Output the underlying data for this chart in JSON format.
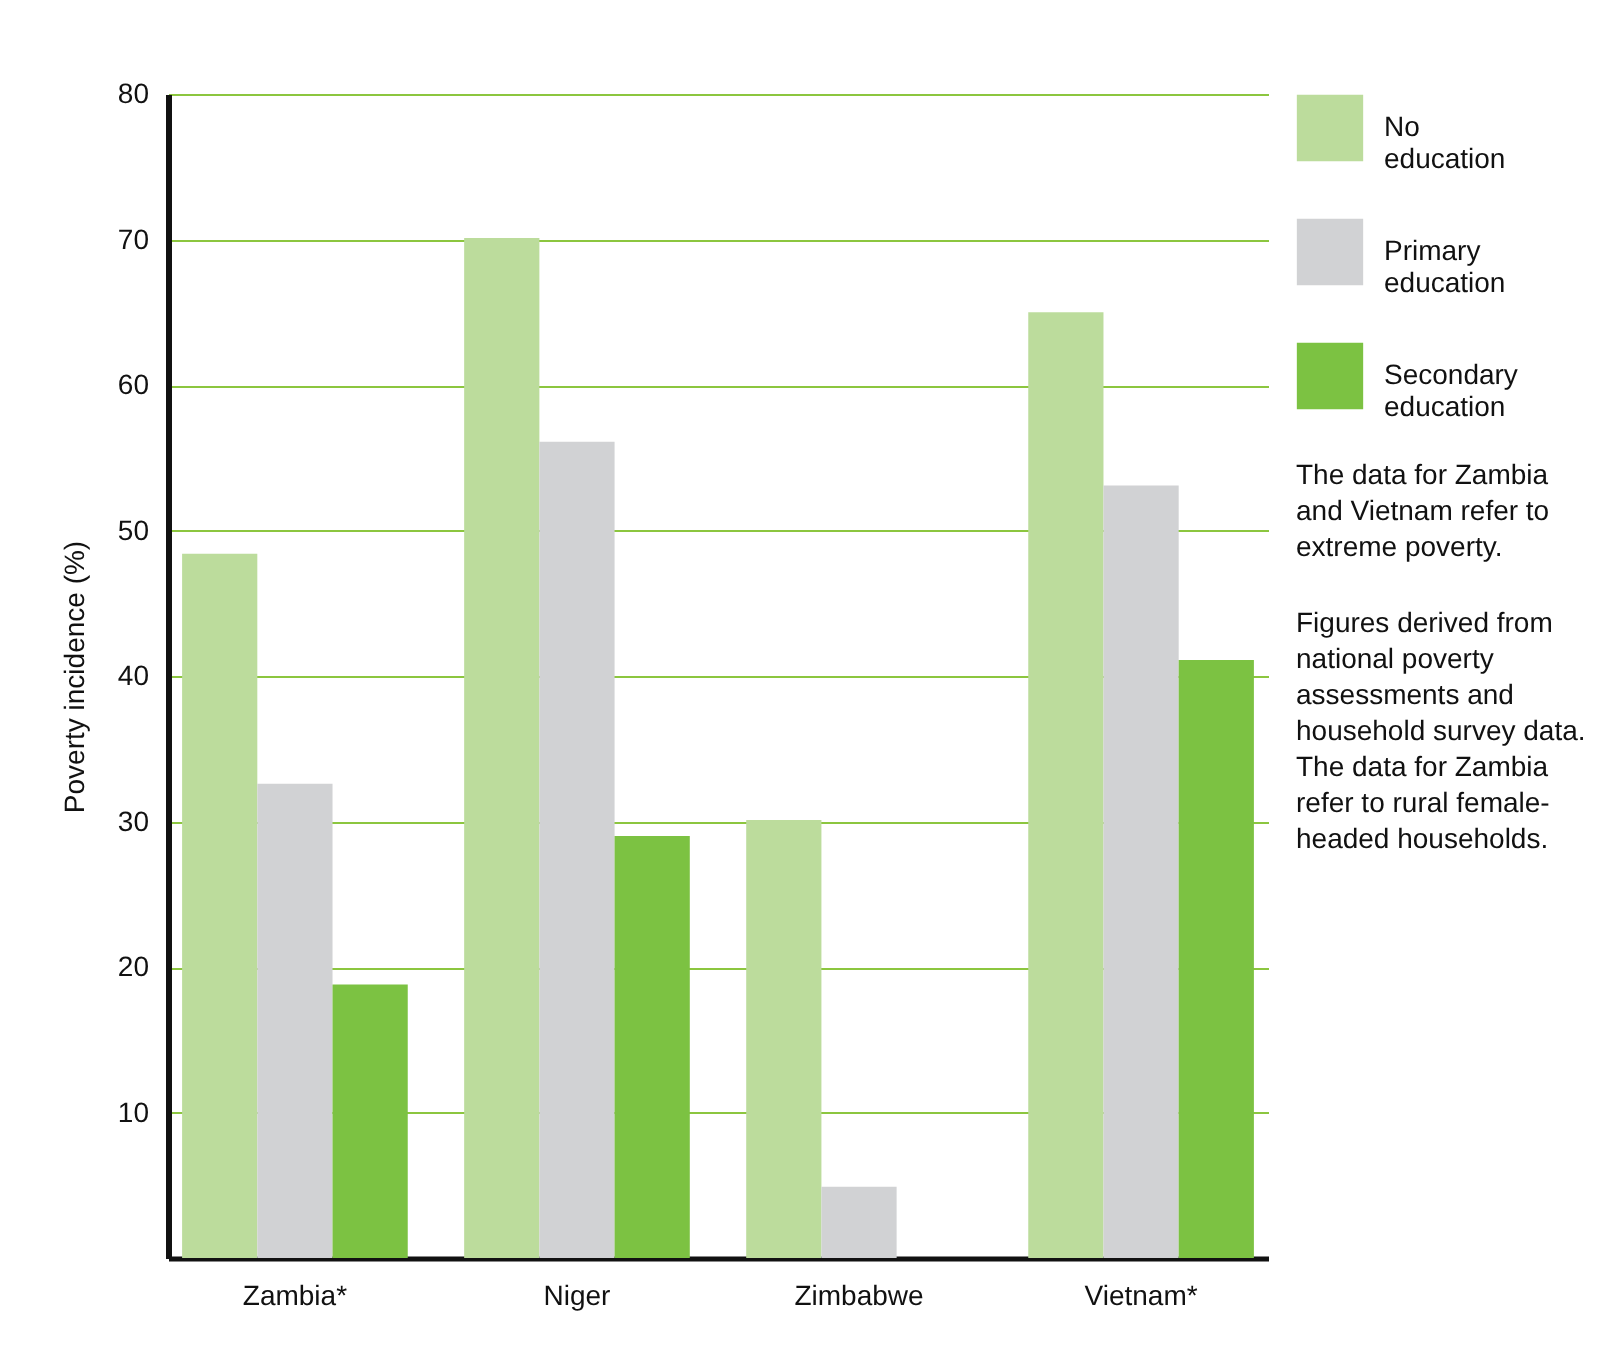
{
  "chart_data": {
    "type": "bar",
    "ylabel": "Poverty incidence (%)",
    "categories": [
      "Zambia*",
      "Niger",
      "Zimbabwe",
      "Vietnam*"
    ],
    "series": [
      {
        "name": "No education",
        "color": "#bcdc9c",
        "values": [
          48.4,
          70.1,
          30.1,
          65.0
        ]
      },
      {
        "name": "Primary education",
        "color": "#d1d2d4",
        "values": [
          32.6,
          56.1,
          4.9,
          53.1
        ]
      },
      {
        "name": "Secondary education",
        "color": "#7cc242",
        "values": [
          18.8,
          29.0,
          null,
          41.1
        ]
      }
    ],
    "ylim": [
      0,
      80
    ],
    "yticks": [
      10,
      20,
      30,
      40,
      50,
      60,
      70,
      80
    ],
    "grid": "y",
    "legend": "top right",
    "annotations": [
      "The data for Zambia and Vietnam refer to extreme poverty.",
      "Figures derived from national poverty assessments and household survey data. The data for Zambia refer to rural female-headed households."
    ]
  }
}
